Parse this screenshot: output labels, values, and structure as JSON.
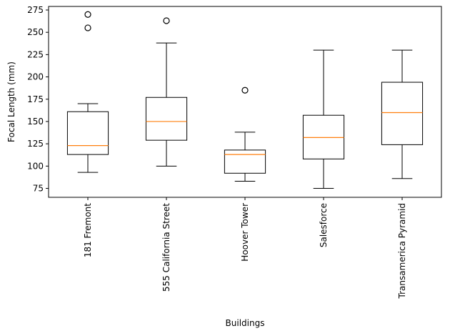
{
  "chart_data": {
    "type": "box",
    "title": "",
    "xlabel": "Buildings",
    "ylabel": "Focal Length (mm)",
    "ylim": [
      65,
      279
    ],
    "yticks": [
      75,
      100,
      125,
      150,
      175,
      200,
      225,
      250,
      275
    ],
    "grid": false,
    "colors": {
      "box": "#000000",
      "median": "#ff7f0e",
      "flier": "#000000"
    },
    "categories": [
      "181 Fremont",
      "555 California Street",
      "Hoover Tower",
      "Salesforce",
      "Transamerica Pyramid"
    ],
    "boxes": [
      {
        "name": "181 Fremont",
        "whisker_low": 93,
        "q1": 113,
        "median": 123,
        "q3": 161,
        "whisker_high": 170,
        "fliers": [
          255,
          270
        ]
      },
      {
        "name": "555 California Street",
        "whisker_low": 100,
        "q1": 129,
        "median": 150,
        "q3": 177,
        "whisker_high": 238,
        "fliers": [
          263
        ]
      },
      {
        "name": "Hoover Tower",
        "whisker_low": 83,
        "q1": 92,
        "median": 113,
        "q3": 118,
        "whisker_high": 138,
        "fliers": [
          185
        ]
      },
      {
        "name": "Salesforce",
        "whisker_low": 75,
        "q1": 108,
        "median": 132,
        "q3": 157,
        "whisker_high": 230,
        "fliers": []
      },
      {
        "name": "Transamerica Pyramid",
        "whisker_low": 86,
        "q1": 124,
        "median": 160,
        "q3": 194,
        "whisker_high": 230,
        "fliers": []
      }
    ]
  }
}
